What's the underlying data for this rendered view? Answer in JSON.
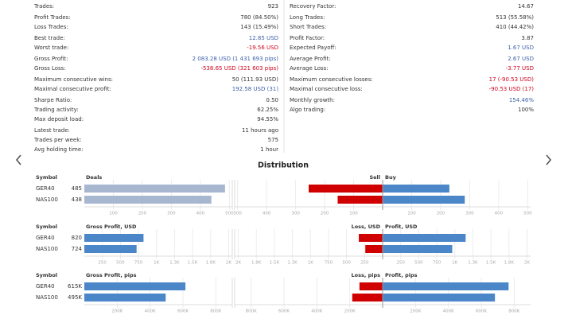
{
  "stats": {
    "left": [
      [
        {
          "label": "Trades:",
          "value": "923"
        }
      ],
      [
        {
          "label": "Profit Trades:",
          "value": "780 (84.50%)"
        },
        {
          "label": "Loss Trades:",
          "value": "143 (15.49%)"
        }
      ],
      [
        {
          "label": "Best trade:",
          "value": "12.85 USD",
          "color": "#3d5fa8"
        },
        {
          "label": "Worst trade:",
          "value": "-19.56 USD",
          "color": "#d0021b"
        }
      ],
      [
        {
          "label": "Gross Profit:",
          "value": "2 083.28 USD (1 431 693 pips)",
          "color": "#3d5fa8"
        },
        {
          "label": "Gross Loss:",
          "value": "-538.65 USD (321 603 pips)",
          "color": "#d0021b"
        }
      ],
      [
        {
          "label": "Maximum consecutive wins:",
          "value": "50 (111.93 USD)"
        },
        {
          "label": "Maximal consecutive profit:",
          "value": "192.58 USD (31)",
          "color": "#3d5fa8"
        }
      ],
      [
        {
          "label": "Sharpe Ratio:",
          "value": "0.50"
        },
        {
          "label": "Trading activity:",
          "value": "62.25%"
        },
        {
          "label": "Max deposit load:",
          "value": "94.55%"
        }
      ],
      [
        {
          "label": "Latest trade:",
          "value": "11 hours ago"
        },
        {
          "label": "Trades per week:",
          "value": "575"
        },
        {
          "label": "Avg holding time:",
          "value": "1 hour"
        }
      ]
    ],
    "right": [
      [
        {
          "label": "Recovery Factor:",
          "value": "14.67"
        }
      ],
      [
        {
          "label": "Long Trades:",
          "value": "513 (55.58%)"
        },
        {
          "label": "Short Trades:",
          "value": "410 (44.42%)"
        }
      ],
      [
        {
          "label": "Profit Factor:",
          "value": "3.87"
        },
        {
          "label": "Expected Payoff:",
          "value": "1.67 USD",
          "color": "#3d5fa8"
        }
      ],
      [
        {
          "label": "Average Profit:",
          "value": "2.67 USD",
          "color": "#3d5fa8"
        },
        {
          "label": "Average Loss:",
          "value": "-3.77 USD",
          "color": "#d0021b"
        }
      ],
      [
        {
          "label": "Maximum consecutive losses:",
          "value": "17 (-90.53 USD)",
          "color": "#d0021b"
        },
        {
          "label": "Maximal consecutive loss:",
          "value": "-90.53 USD (17)",
          "color": "#d0021b"
        }
      ],
      [
        {
          "label": "Monthly growth:",
          "value": "154.46%",
          "color": "#3d5fa8"
        },
        {
          "label": "Algo trading:",
          "value": "100%"
        }
      ]
    ]
  },
  "distribution": {
    "title": "Distribution",
    "panels": [
      {
        "symbol_header": "Symbol",
        "symbols": [
          "GER40",
          "NAS100"
        ],
        "left": {
          "title": "Deals",
          "values": [
            485,
            438
          ],
          "color": "#a8b7d0"
        },
        "right": {
          "neg_title": "Sell",
          "pos_title": "Buy",
          "neg": [
            255,
            155
          ],
          "pos": [
            230,
            283
          ],
          "neg_color": "#d10000",
          "pos_color": "#4a86c8"
        },
        "xlim": [
          0,
          510
        ],
        "xticks": [
          100,
          200,
          300,
          400,
          500
        ]
      },
      {
        "symbol_header": "Symbol",
        "symbols": [
          "GER40",
          "NAS100"
        ],
        "left": {
          "title": "Gross Profit, USD",
          "values": [
            820,
            724
          ],
          "color": "#4a86c8"
        },
        "right": {
          "neg_title": "Loss, USD",
          "pos_title": "Profit, USD",
          "neg": [
            330,
            240
          ],
          "pos": [
            1150,
            964
          ],
          "neg_color": "#d10000",
          "pos_color": "#4a86c8"
        },
        "xlim": [
          0,
          2050
        ],
        "xticks": [
          250,
          500,
          750,
          {
            "value": 1000,
            "label": "1K"
          },
          {
            "value": 1250,
            "label": "1.3K"
          },
          {
            "value": 1500,
            "label": "1.5K"
          },
          {
            "value": 1750,
            "label": "1.8K"
          },
          {
            "value": 2000,
            "label": "2K"
          }
        ]
      },
      {
        "symbol_header": "Symbol",
        "symbols": [
          "GER40",
          "NAS100"
        ],
        "left": {
          "title": "Gross Profit, pips",
          "values": [
            615000,
            495000
          ],
          "value_labels": [
            "615K",
            "495K"
          ],
          "color": "#4a86c8"
        },
        "right": {
          "neg_title": "Loss, pips",
          "pos_title": "Profit, pips",
          "neg": [
            141000,
            185000
          ],
          "pos": [
            766000,
            683000
          ],
          "neg_color": "#d10000",
          "pos_color": "#4a86c8"
        },
        "xlim": [
          0,
          900000
        ],
        "xticks": [
          {
            "value": 200000,
            "label": "200K"
          },
          {
            "value": 400000,
            "label": "400K"
          },
          {
            "value": 600000,
            "label": "600K"
          },
          {
            "value": 800000,
            "label": "800K"
          }
        ]
      }
    ]
  }
}
